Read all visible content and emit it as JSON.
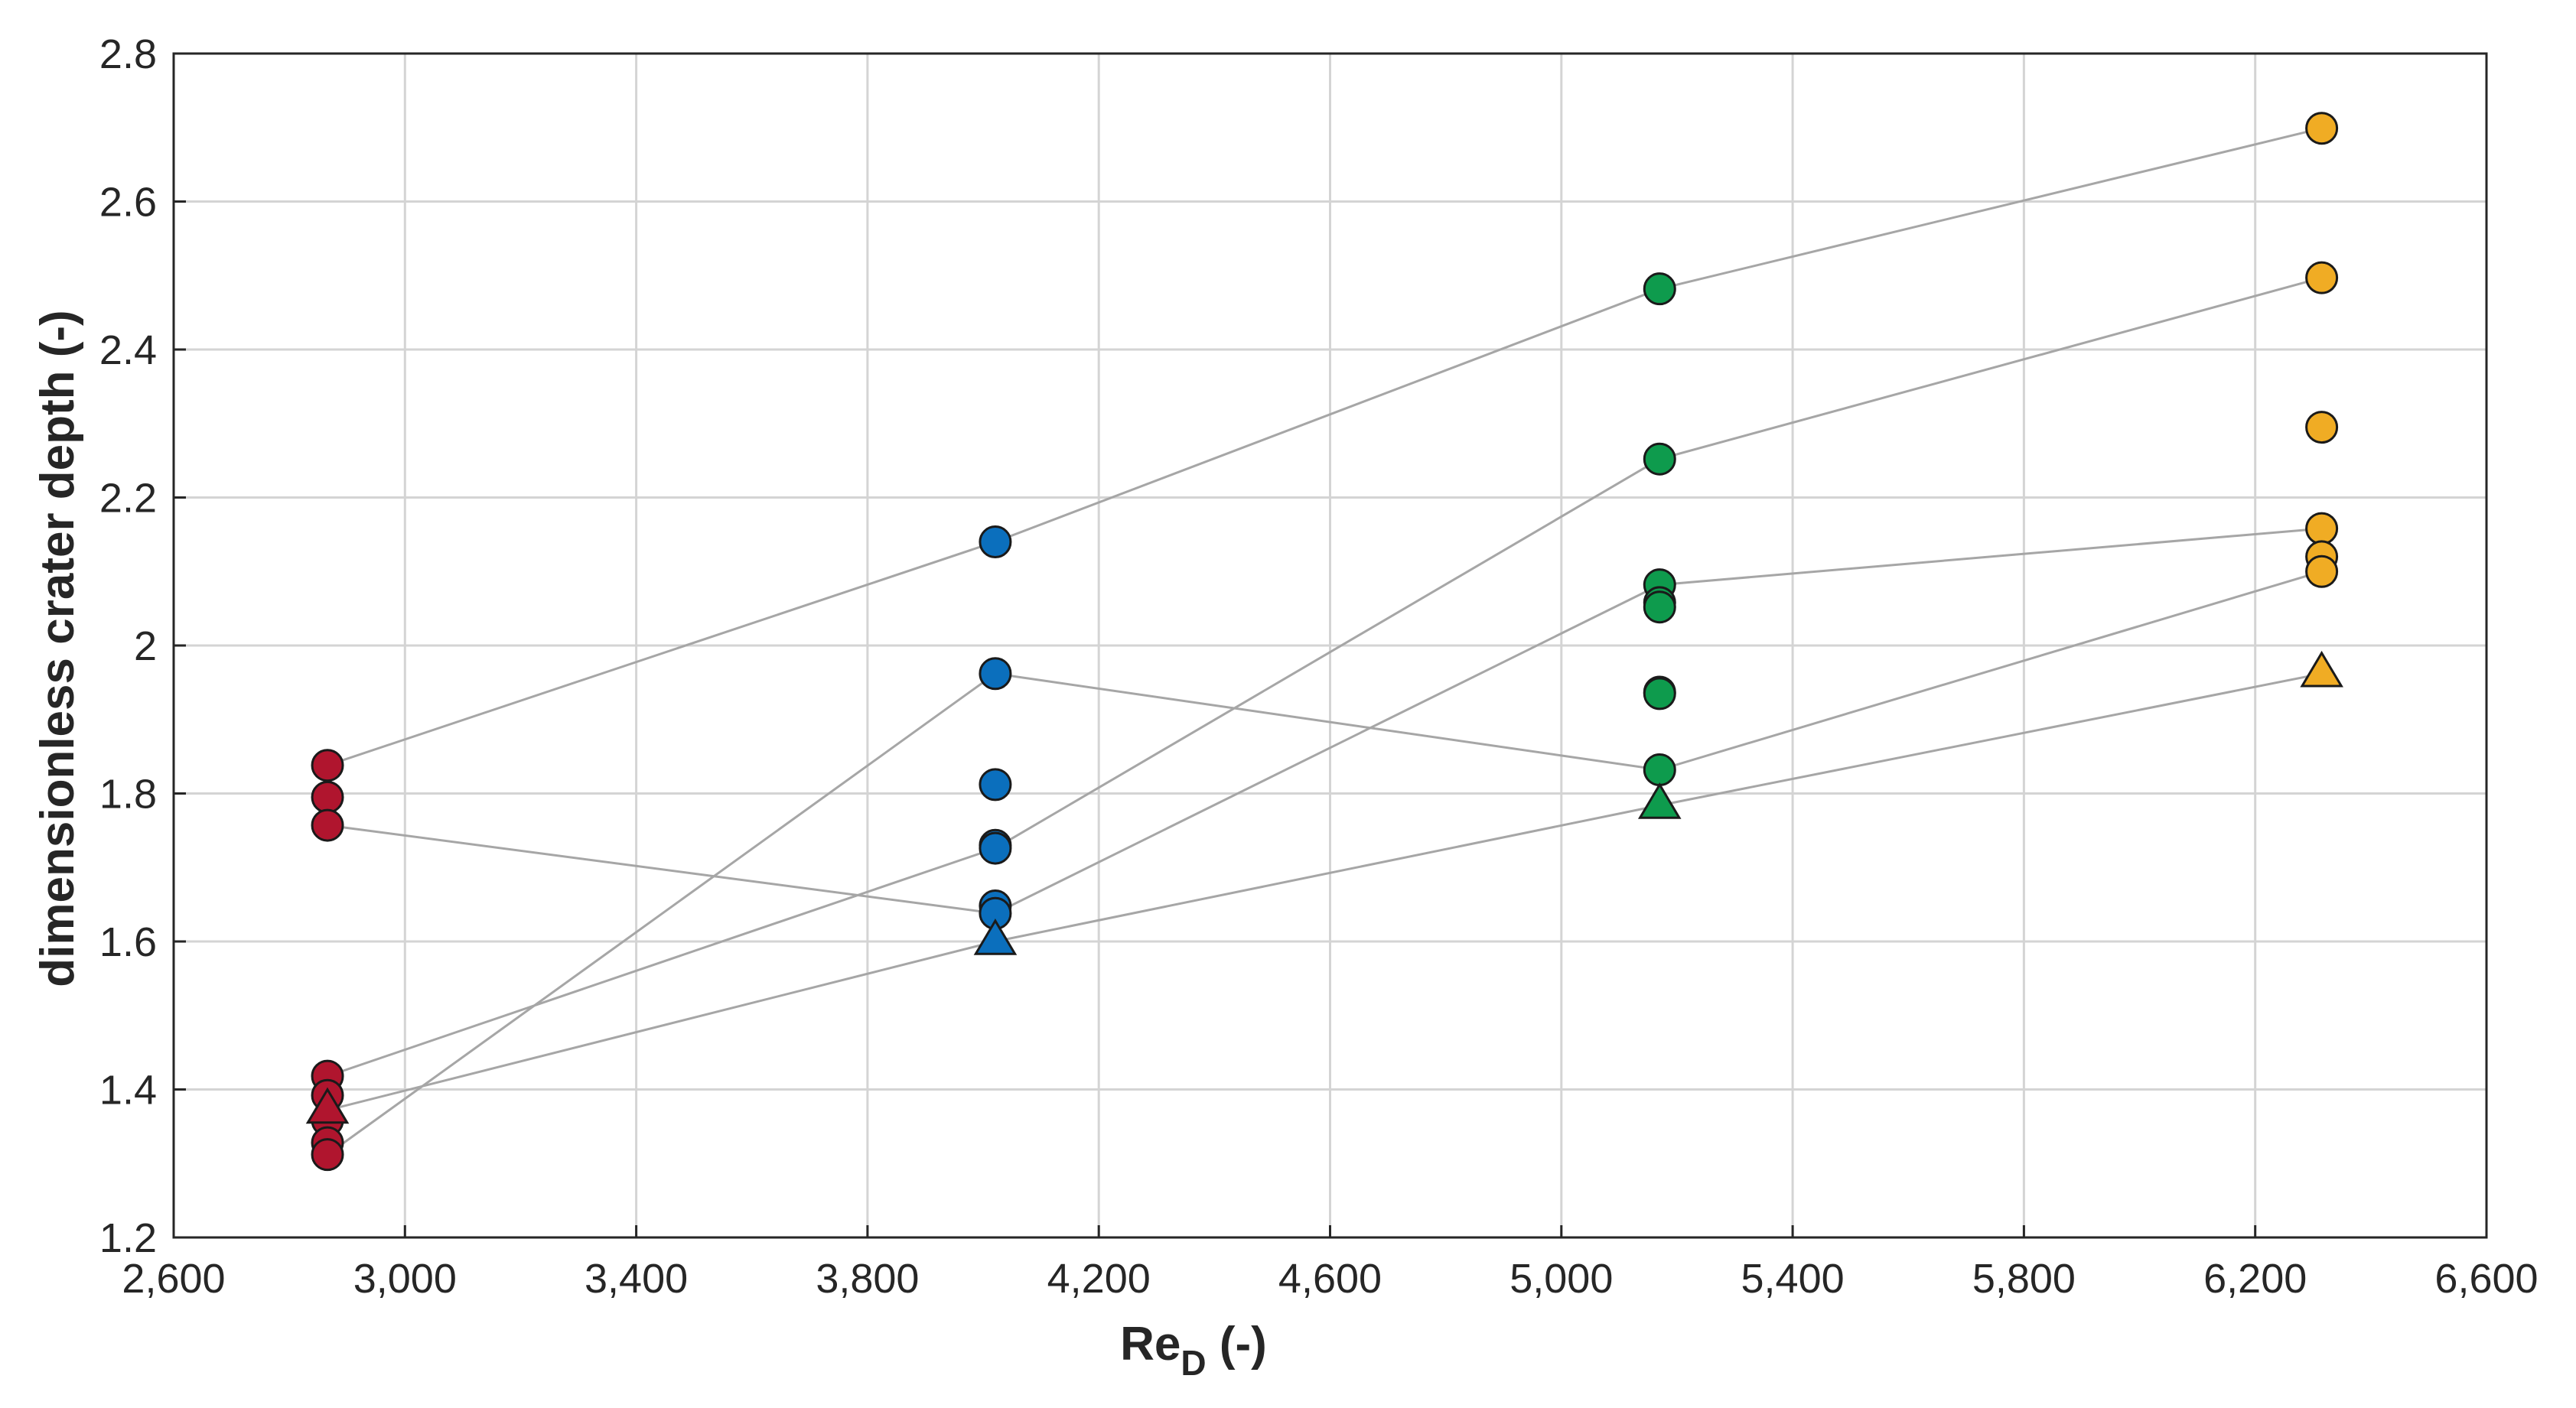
{
  "chart_data": {
    "type": "scatter",
    "xlabel": "Re",
    "xlabel_subscript": "D",
    "xlabel_suffix": " (-)",
    "ylabel": "dimensionless crater depth (-)",
    "xlim": [
      2600,
      6600
    ],
    "ylim": [
      1.2,
      2.8
    ],
    "x_ticks": [
      2600,
      3000,
      3400,
      3800,
      4200,
      4600,
      5000,
      5400,
      5800,
      6200,
      6600
    ],
    "x_tick_labels": [
      "2,600",
      "3,000",
      "3,400",
      "3,800",
      "4,200",
      "4,600",
      "5,000",
      "5,400",
      "5,800",
      "6,200",
      "6,600"
    ],
    "y_ticks": [
      1.2,
      1.4,
      1.6,
      1.8,
      2.0,
      2.2,
      2.4,
      2.6,
      2.8
    ],
    "y_tick_labels": [
      "1.2",
      "1.4",
      "1.6",
      "1.8",
      "2",
      "2.2",
      "2.4",
      "2.6",
      "2.8"
    ],
    "grid": true,
    "colors": {
      "red": "#b0152e",
      "blue": "#0b6fbd",
      "green": "#0e9b4d",
      "yellow": "#f0ac24",
      "connector": "#a6a6a6",
      "grid": "#d4d4d4",
      "axis": "#262626"
    },
    "series": [
      {
        "color": "red",
        "x": 2866,
        "circles": [
          1.838,
          1.795,
          1.757,
          1.418,
          1.392,
          1.358,
          1.328,
          1.312
        ],
        "triangles": [
          1.372
        ]
      },
      {
        "color": "blue",
        "x": 4021,
        "circles": [
          2.14,
          1.962,
          1.812,
          1.73,
          1.726,
          1.648,
          1.638
        ],
        "triangles": [
          1.6
        ]
      },
      {
        "color": "green",
        "x": 5170,
        "circles": [
          2.482,
          2.252,
          2.082,
          2.058,
          2.052,
          1.937,
          1.935,
          1.832
        ],
        "triangles": [
          1.784
        ]
      },
      {
        "color": "yellow",
        "x": 6315,
        "circles": [
          2.699,
          2.497,
          2.295,
          2.158,
          2.12,
          2.1
        ],
        "triangles": [
          1.962
        ]
      }
    ],
    "connector_lines": [
      [
        [
          2866,
          1.838
        ],
        [
          4021,
          2.14
        ],
        [
          5170,
          2.482
        ],
        [
          6315,
          2.699
        ]
      ],
      [
        [
          2866,
          1.312
        ],
        [
          4021,
          1.962
        ],
        [
          5170,
          1.832
        ],
        [
          6315,
          2.1
        ]
      ],
      [
        [
          2866,
          1.418
        ],
        [
          4021,
          1.726
        ],
        [
          5170,
          2.252
        ],
        [
          6315,
          2.497
        ]
      ],
      [
        [
          2866,
          1.757
        ],
        [
          4021,
          1.638
        ],
        [
          5170,
          2.082
        ],
        [
          6315,
          2.158
        ]
      ],
      [
        [
          2866,
          1.372
        ],
        [
          4021,
          1.6
        ],
        [
          5170,
          1.784
        ],
        [
          6315,
          1.962
        ]
      ]
    ]
  }
}
